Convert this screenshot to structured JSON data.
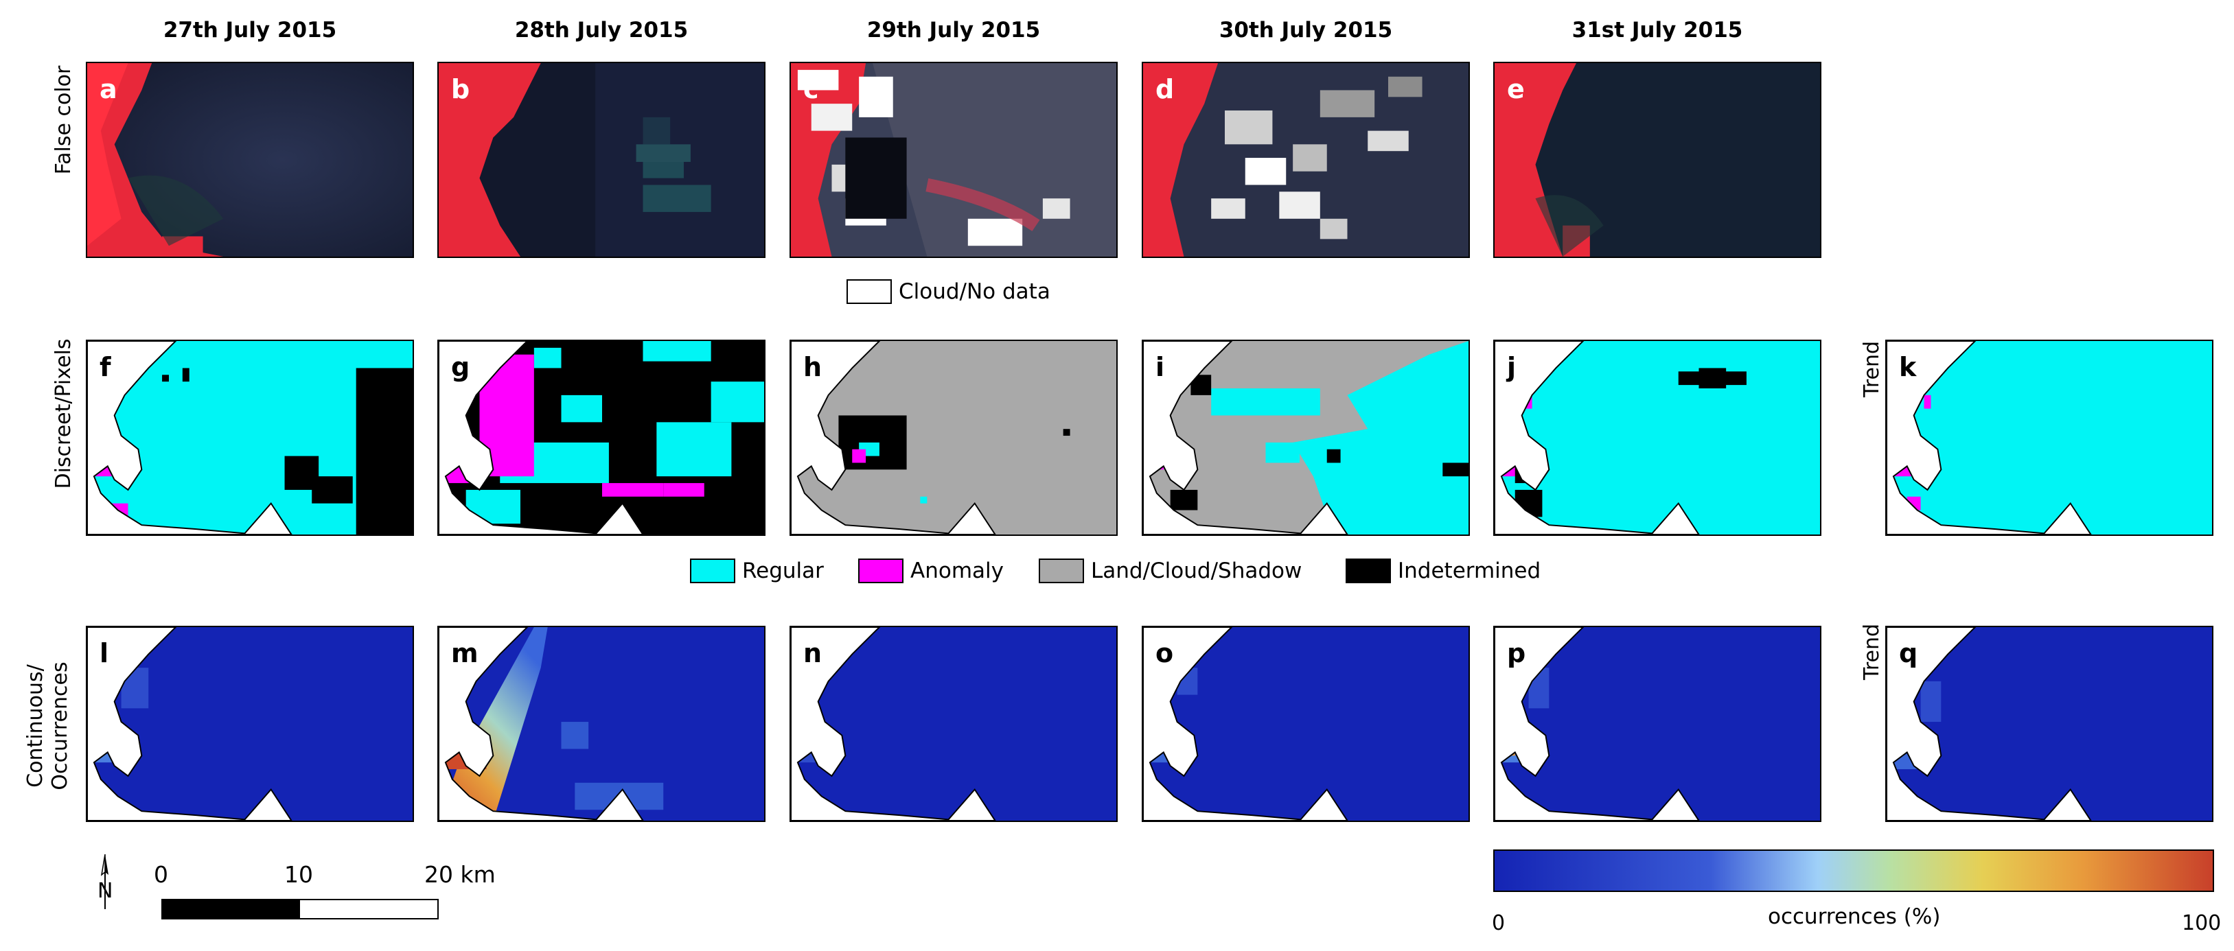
{
  "columns": [
    "27th July 2015",
    "28th July 2015",
    "29th July 2015",
    "30th July 2015",
    "31st July 2015"
  ],
  "rows": {
    "false_color": "False color",
    "discrete": "Discreet/Pixels",
    "continuous": [
      "Continuous/",
      "Occurrences"
    ]
  },
  "trend_label": "Trend",
  "panel_letters": {
    "false_color": [
      "a",
      "b",
      "c",
      "d",
      "e"
    ],
    "discrete": [
      "f",
      "g",
      "h",
      "i",
      "j",
      "k"
    ],
    "continuous": [
      "l",
      "m",
      "n",
      "o",
      "p",
      "q"
    ]
  },
  "cloud_legend": "Cloud/No data",
  "class_legend": [
    {
      "label": "Regular",
      "color": "#00f5f5"
    },
    {
      "label": "Anomaly",
      "color": "#ff00ff"
    },
    {
      "label": "Land/Cloud/Shadow",
      "color": "#a9a9a9"
    },
    {
      "label": "Indetermined",
      "color": "#000000"
    }
  ],
  "scale_bar": {
    "ticks": [
      "0",
      "10",
      "20 km"
    ],
    "north_symbol": "N"
  },
  "colorbar": {
    "title": "occurrences (%)",
    "min": "0",
    "max": "100"
  },
  "colors": {
    "regular": "#00f5f5",
    "anomaly": "#ff00ff",
    "land_cloud": "#a9a9a9",
    "indetermined": "#000000",
    "occ_low": "#1424b4",
    "occ_high": "#d0462a",
    "false_color_land": "#ff2a3a",
    "false_color_water": "#1c2440"
  }
}
